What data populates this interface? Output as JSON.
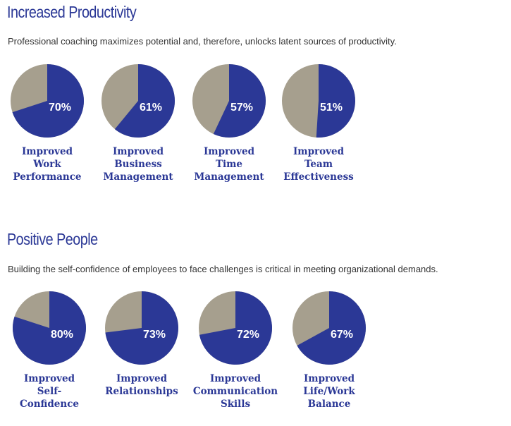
{
  "colors": {
    "accent": "#2b3896",
    "remainder": "#a69f8e",
    "text": "#333333"
  },
  "sections": [
    {
      "title": "Increased Productivity",
      "description": "Professional coaching maximizes potential and, therefore, unlocks latent sources of productivity."
    },
    {
      "title": "Positive People",
      "description": "Building the self-confidence of employees to face challenges is critical in meeting organizational demands."
    }
  ],
  "chart_data": [
    {
      "type": "pie",
      "title": "Increased Productivity",
      "items": [
        {
          "value": 70,
          "label_text": "70%",
          "label_lines": [
            "Improved",
            "Work",
            "Performance"
          ]
        },
        {
          "value": 61,
          "label_text": "61%",
          "label_lines": [
            "Improved",
            "Business",
            "Management"
          ]
        },
        {
          "value": 57,
          "label_text": "57%",
          "label_lines": [
            "Improved",
            "Time",
            "Management"
          ]
        },
        {
          "value": 51,
          "label_text": "51%",
          "label_lines": [
            "Improved",
            "Team",
            "Effectiveness"
          ]
        }
      ]
    },
    {
      "type": "pie",
      "title": "Positive People",
      "items": [
        {
          "value": 80,
          "label_text": "80%",
          "label_lines": [
            "Improved",
            "Self-",
            "Confidence"
          ]
        },
        {
          "value": 73,
          "label_text": "73%",
          "label_lines": [
            "Improved",
            "Relationships"
          ]
        },
        {
          "value": 72,
          "label_text": "72%",
          "label_lines": [
            "Improved",
            "Communication",
            "Skills"
          ]
        },
        {
          "value": 67,
          "label_text": "67%",
          "label_lines": [
            "Improved",
            "Life/Work",
            "Balance"
          ]
        }
      ]
    }
  ]
}
